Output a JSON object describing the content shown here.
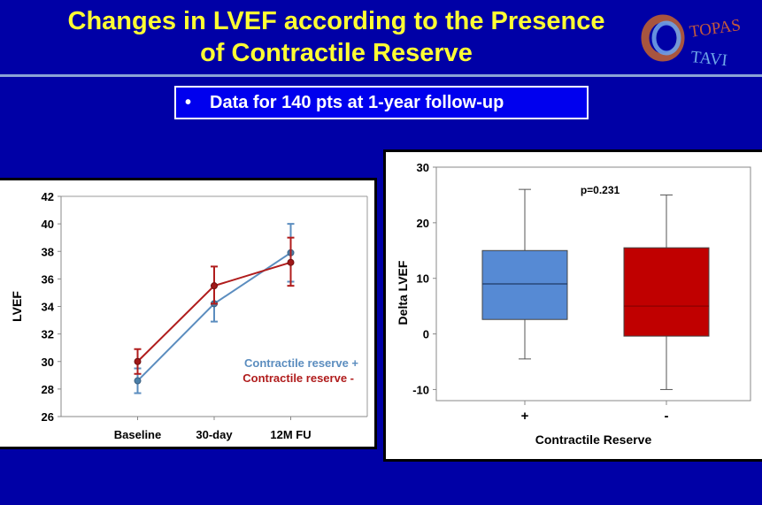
{
  "slide": {
    "title_line1": "Changes in LVEF according to the Presence",
    "title_line2": "of Contractile Reserve",
    "logo": {
      "word1": "TOPAS",
      "word2": "TAVI",
      "icon": "ring-logo-icon"
    },
    "subtitle_bullet": "•",
    "subtitle": "Data for 140 pts at 1-year follow-up",
    "colors": {
      "background": "#0000a6",
      "title": "#ffff33",
      "series_plus": "#5b8dbf",
      "series_minus": "#b01c1c",
      "box_plus": "#568ad4",
      "box_minus": "#c00000"
    }
  },
  "chart_data": [
    {
      "type": "line",
      "title": "",
      "xlabel": "",
      "ylabel": "LVEF",
      "categories": [
        "Baseline",
        "30-day",
        "12M FU"
      ],
      "ylim": [
        26,
        42
      ],
      "yticks": [
        26,
        28,
        30,
        32,
        34,
        36,
        38,
        40,
        42
      ],
      "legend_position": "bottom-right",
      "series": [
        {
          "name": "Contractile reserve +",
          "values": [
            28.6,
            34.2,
            37.9
          ],
          "err_low": [
            27.7,
            32.9,
            35.8
          ],
          "err_high": [
            29.5,
            35.5,
            40.0
          ]
        },
        {
          "name": "Contractile reserve -",
          "values": [
            30.0,
            35.5,
            37.2
          ],
          "err_low": [
            29.1,
            34.2,
            35.5
          ],
          "err_high": [
            30.9,
            36.9,
            39.0
          ]
        }
      ]
    },
    {
      "type": "box",
      "title": "",
      "xlabel": "Contractile Reserve",
      "ylabel": "Delta LVEF",
      "categories": [
        "+",
        "-"
      ],
      "ylim": [
        -12,
        30
      ],
      "yticks": [
        -10,
        0,
        10,
        20,
        30
      ],
      "annotation": "p=0.231",
      "boxes": [
        {
          "name": "+",
          "min": -4.5,
          "q1": 2.6,
          "median": 9,
          "q3": 15,
          "max": 26
        },
        {
          "name": "-",
          "min": -10,
          "q1": -0.4,
          "median": 5,
          "q3": 15.5,
          "max": 25
        }
      ]
    }
  ]
}
